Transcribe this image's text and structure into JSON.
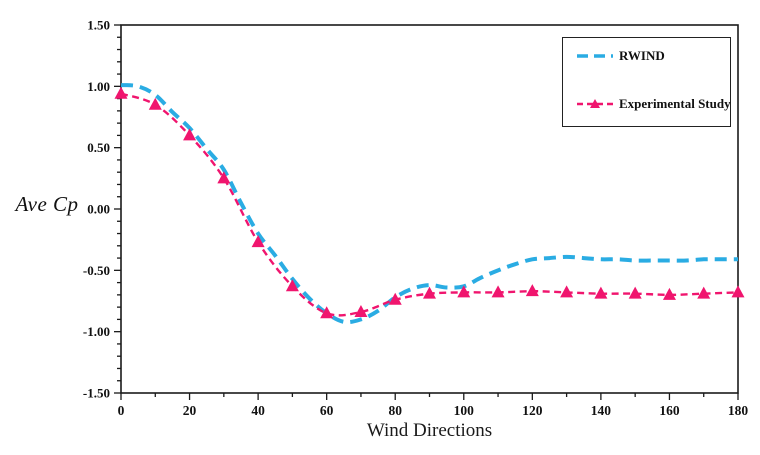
{
  "figure": {
    "background": "#ffffff",
    "axis_color": "#1a1a1a"
  },
  "chart_data": {
    "type": "line",
    "title": "",
    "xlabel": "Wind Directions",
    "ylabel": "Ave Cp",
    "xlim": [
      0,
      180
    ],
    "ylim": [
      -1.5,
      1.5
    ],
    "grid": "off",
    "tick_direction": "out",
    "x_major_step": 20,
    "x_minor_step": 10,
    "y_major_step": 0.5,
    "y_minor_step": 0.1,
    "x_tick_labels": [
      "0",
      "20",
      "40",
      "60",
      "80",
      "100",
      "120",
      "140",
      "160",
      "180"
    ],
    "y_tick_labels": [
      "1.50",
      "1.00",
      "0.50",
      "0.00",
      "-0.50",
      "-1.00",
      "-1.50"
    ],
    "legend_position": "top-right",
    "series": [
      {
        "name": "RWIND",
        "color": "#2AACE3",
        "style": "dashed",
        "dash": "12 7",
        "line_width": 4,
        "marker": "none",
        "x": [
          0,
          5,
          10,
          15,
          20,
          25,
          30,
          35,
          40,
          45,
          50,
          55,
          60,
          65,
          70,
          75,
          80,
          85,
          90,
          95,
          100,
          105,
          110,
          115,
          120,
          125,
          130,
          135,
          140,
          145,
          150,
          155,
          160,
          165,
          170,
          175,
          180
        ],
        "y": [
          1.01,
          1.0,
          0.93,
          0.79,
          0.66,
          0.49,
          0.32,
          0.05,
          -0.2,
          -0.38,
          -0.57,
          -0.73,
          -0.85,
          -0.92,
          -0.9,
          -0.83,
          -0.72,
          -0.65,
          -0.62,
          -0.64,
          -0.63,
          -0.56,
          -0.5,
          -0.45,
          -0.41,
          -0.4,
          -0.39,
          -0.4,
          -0.41,
          -0.41,
          -0.42,
          -0.42,
          -0.42,
          -0.42,
          -0.41,
          -0.41,
          -0.41
        ]
      },
      {
        "name": "Experimental Study",
        "color": "#F0156E",
        "style": "dashed",
        "dash": "7 4.5",
        "line_width": 2.4,
        "marker": "triangle-up",
        "x": [
          0,
          10,
          20,
          30,
          40,
          50,
          60,
          70,
          80,
          90,
          100,
          110,
          120,
          130,
          140,
          150,
          160,
          170,
          180
        ],
        "y": [
          0.94,
          0.85,
          0.6,
          0.25,
          -0.27,
          -0.63,
          -0.85,
          -0.84,
          -0.74,
          -0.69,
          -0.68,
          -0.68,
          -0.67,
          -0.68,
          -0.69,
          -0.69,
          -0.7,
          -0.69,
          -0.68
        ]
      }
    ]
  }
}
